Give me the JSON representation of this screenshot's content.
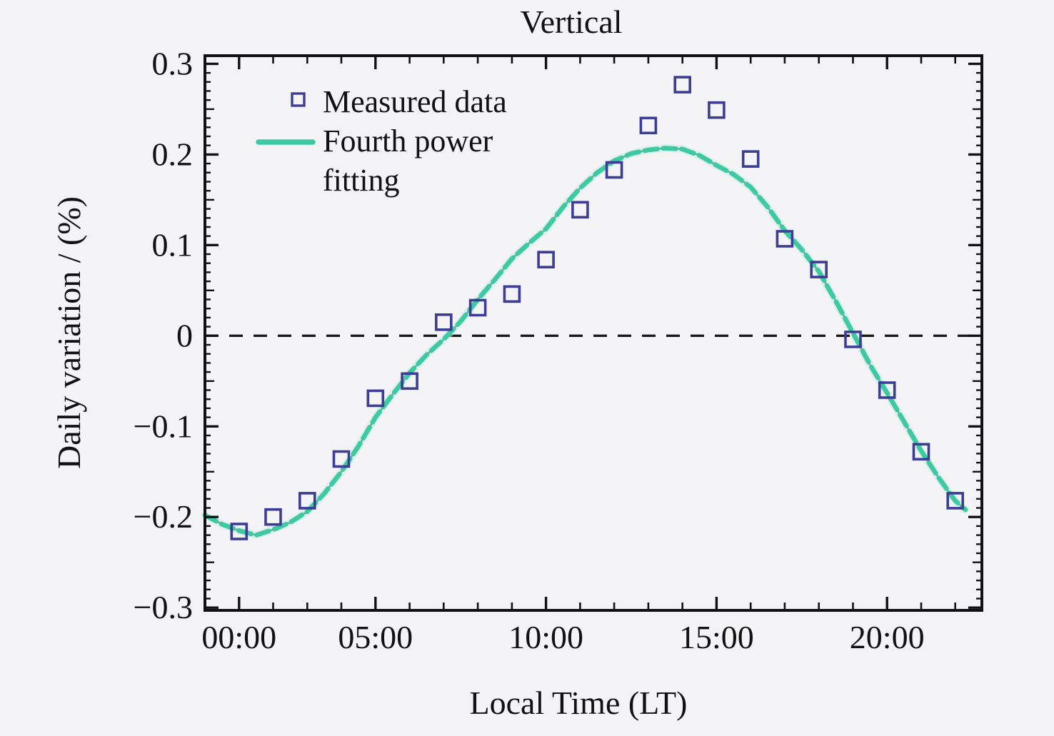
{
  "figure": {
    "title": "Vertical",
    "background": "#f4f4f6"
  },
  "legend": {
    "measured": "Measured data",
    "fit_line1": "Fourth power",
    "fit_line2": "fitting"
  },
  "colors": {
    "fit_line": "#3fc9a2",
    "fit_line_halo": "#c9eee1",
    "fit_line_core": "#8f97a3",
    "marker": "#3d3d96",
    "zero_line": "#1a1a1a",
    "axis": "#111111",
    "background": "#f4f4f6",
    "text": "#111111"
  },
  "chart_data": {
    "type": "scatter",
    "title": "Vertical",
    "xlabel": "Local Time (LT)",
    "ylabel": "Daily variation / (%)",
    "xlim_hours": [
      0,
      22.78
    ],
    "ylim": [
      -0.303,
      0.309
    ],
    "grid": false,
    "legend_position": "upper-left-inside",
    "zero_line": {
      "value": 0,
      "style": "dashed",
      "color": "#1a1a1a"
    },
    "x_ticks": [
      {
        "position_hour": 1,
        "label": "00:00"
      },
      {
        "position_hour": 5,
        "label": "05:00"
      },
      {
        "position_hour": 10,
        "label": "10:00"
      },
      {
        "position_hour": 15,
        "label": "15:00"
      },
      {
        "position_hour": 20,
        "label": "20:00"
      }
    ],
    "x_minor_tick_every_hours": 1,
    "y_ticks": [
      {
        "value": 0.3,
        "label": "0.3"
      },
      {
        "value": 0.2,
        "label": "0.2"
      },
      {
        "value": 0.1,
        "label": "0.1"
      },
      {
        "value": 0,
        "label": "0"
      },
      {
        "value": -0.1,
        "label": "−0.1"
      },
      {
        "value": -0.2,
        "label": "−0.2"
      },
      {
        "value": -0.3,
        "label": "−0.3"
      }
    ],
    "y_minor_tick_step": 0.01,
    "y_mid_tick_step": 0.05,
    "series": [
      {
        "name": "Measured data",
        "type": "scatter",
        "marker": "open-square",
        "color": "#3d3d96",
        "x_hours": [
          1,
          2,
          3,
          4,
          5,
          6,
          7,
          8,
          9,
          10,
          11,
          12,
          13,
          14,
          15,
          16,
          17,
          18,
          19,
          20,
          21,
          22
        ],
        "y": [
          -0.216,
          -0.2,
          -0.182,
          -0.136,
          -0.069,
          -0.05,
          0.015,
          0.031,
          0.046,
          0.084,
          0.139,
          0.183,
          0.232,
          0.277,
          0.249,
          0.195,
          0.107,
          0.073,
          -0.004,
          -0.06,
          -0.128,
          -0.182
        ]
      },
      {
        "name": "Fourth power fitting",
        "type": "line",
        "style": "dashed-over-core",
        "color": "#3fc9a2",
        "x_hours": [
          0,
          0.5,
          1,
          1.5,
          2,
          2.5,
          3,
          3.5,
          4,
          4.5,
          5,
          5.5,
          6,
          6.5,
          7,
          7.5,
          8,
          8.5,
          9,
          9.5,
          10,
          10.5,
          11,
          11.5,
          12,
          12.5,
          13,
          13.5,
          14,
          14.5,
          15,
          15.5,
          16,
          16.5,
          17,
          17.5,
          18,
          18.5,
          19,
          19.5,
          20,
          20.5,
          21,
          21.5,
          22,
          22.3
        ],
        "y": [
          -0.198,
          -0.208,
          -0.215,
          -0.22,
          -0.214,
          -0.206,
          -0.194,
          -0.174,
          -0.15,
          -0.122,
          -0.09,
          -0.065,
          -0.041,
          -0.021,
          -0.004,
          0.016,
          0.04,
          0.062,
          0.085,
          0.102,
          0.118,
          0.142,
          0.163,
          0.18,
          0.193,
          0.201,
          0.205,
          0.207,
          0.206,
          0.199,
          0.188,
          0.178,
          0.164,
          0.142,
          0.116,
          0.095,
          0.071,
          0.038,
          0.003,
          -0.032,
          -0.063,
          -0.095,
          -0.127,
          -0.156,
          -0.182,
          -0.192
        ]
      }
    ]
  }
}
